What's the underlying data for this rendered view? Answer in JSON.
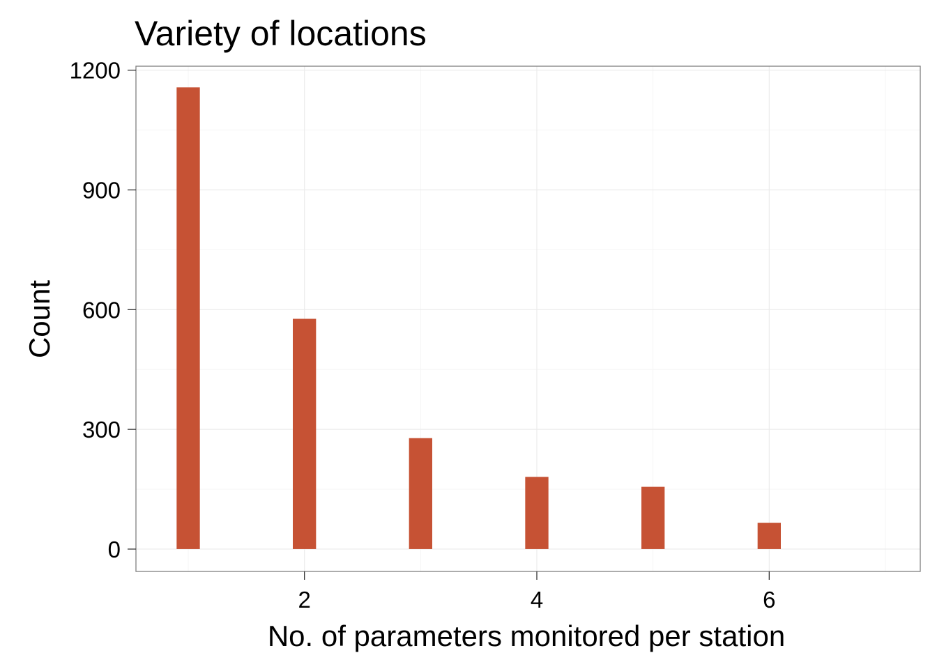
{
  "chart_data": {
    "type": "bar",
    "title": "Variety of locations",
    "xlabel": "No. of parameters monitored per station",
    "ylabel": "Count",
    "x": [
      1,
      2,
      3,
      4,
      5,
      6
    ],
    "values": [
      1157,
      577,
      278,
      181,
      156,
      66
    ],
    "xlim": [
      0.55,
      7.3
    ],
    "ylim": [
      -56,
      1210
    ],
    "xticks": [
      2,
      4,
      6
    ],
    "yticks": [
      0,
      300,
      600,
      900,
      1200
    ],
    "xtick_labels": [
      "2",
      "4",
      "6"
    ],
    "ytick_labels": [
      "0",
      "300",
      "600",
      "900",
      "1200"
    ],
    "grid": true,
    "colors": {
      "bar": "#C65234",
      "panel_border": "#7f7f7f",
      "grid_major": "#ebebeb",
      "grid_minor": "#f5f5f5"
    }
  }
}
